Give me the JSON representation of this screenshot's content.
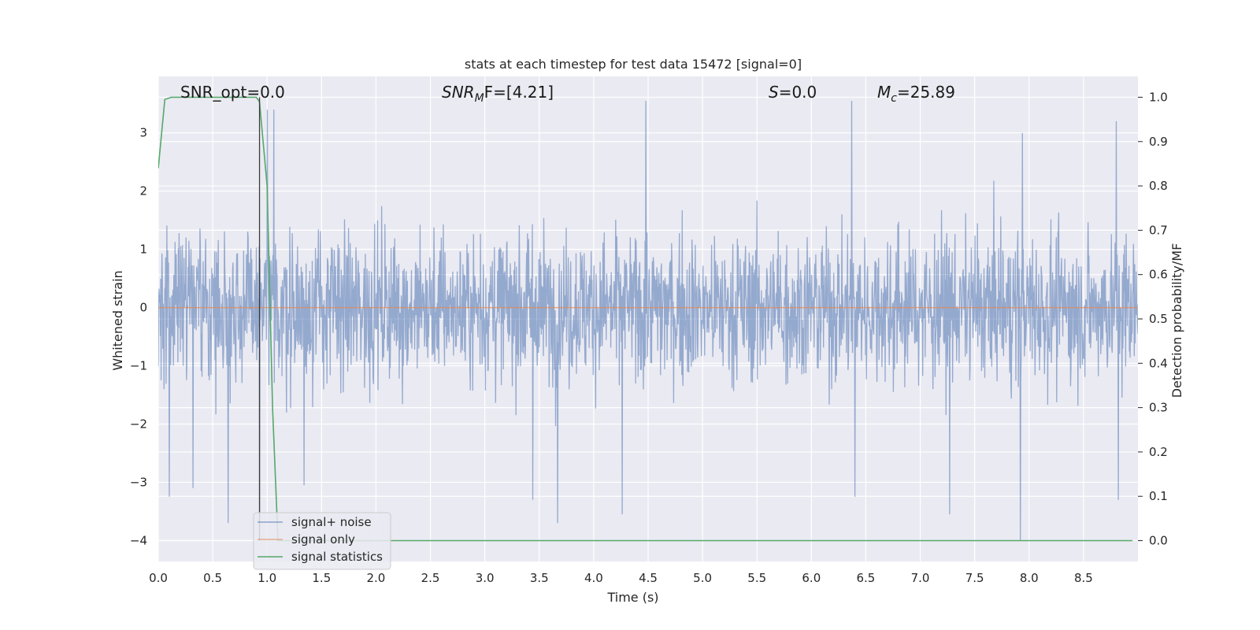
{
  "chart_data": {
    "type": "line",
    "title": "stats at each timestep for test data 15472 [signal=0]",
    "xlabel": "Time (s)",
    "ylabel_left": "Whitened strain",
    "ylabel_right": "Detection probability/MF",
    "xlim": [
      0.0,
      9.0
    ],
    "ylim_left": [
      -4.36,
      3.97
    ],
    "ylim_right": [
      -0.047,
      1.047
    ],
    "x_ticks": [
      "0.0",
      "0.5",
      "1.0",
      "1.5",
      "2.0",
      "2.5",
      "3.0",
      "3.5",
      "4.0",
      "4.5",
      "5.0",
      "5.5",
      "6.0",
      "6.5",
      "7.0",
      "7.5",
      "8.0",
      "8.5"
    ],
    "y_left_ticks": [
      "3",
      "2",
      "1",
      "0",
      "−1",
      "−2",
      "−3",
      "−4"
    ],
    "y_right_ticks": [
      "1.0",
      "0.9",
      "0.8",
      "0.7",
      "0.6",
      "0.5",
      "0.4",
      "0.3",
      "0.2",
      "0.1",
      "0.0"
    ],
    "grid": true,
    "legend_placement": "lower-left",
    "colors": {
      "background": "#eaeaf2",
      "grid": "#ffffff",
      "noise": "#4c72b0",
      "signal": "#dd8452",
      "stats": "#55a868",
      "vline": "#3a3a3a"
    },
    "annotations": {
      "snr_opt": "SNR_opt=0.0",
      "snr_mf_symbol": "SNR",
      "snr_mf_sub": "M",
      "snr_mf_rest": "F=[4.21]",
      "s_symbol": "S",
      "s_rest": "=0.0",
      "mc_symbol": "M",
      "mc_sub": "c",
      "mc_rest": "=25.89"
    },
    "vertical_marker_x": 0.93,
    "series": [
      {
        "name": "signal+ noise",
        "axis": "left",
        "description_values": "dense whitened noise, roughly within -2 to 2.5 with spikes",
        "spikes": [
          {
            "x": 0.1,
            "y": -3.25
          },
          {
            "x": 0.32,
            "y": -3.1
          },
          {
            "x": 0.64,
            "y": -3.7
          },
          {
            "x": 0.93,
            "y": -3.8
          },
          {
            "x": 1.06,
            "y": 3.4
          },
          {
            "x": 1.34,
            "y": -3.05
          },
          {
            "x": 3.44,
            "y": -3.3
          },
          {
            "x": 3.67,
            "y": -3.7
          },
          {
            "x": 4.26,
            "y": -3.55
          },
          {
            "x": 4.48,
            "y": 3.55
          },
          {
            "x": 6.37,
            "y": 3.55
          },
          {
            "x": 6.4,
            "y": -3.25
          },
          {
            "x": 7.27,
            "y": -3.55
          },
          {
            "x": 7.92,
            "y": -4.0
          },
          {
            "x": 7.94,
            "y": 3.0
          },
          {
            "x": 8.8,
            "y": 3.2
          },
          {
            "x": 8.82,
            "y": -3.3
          },
          {
            "x": 1.0,
            "y": 3.4
          }
        ]
      },
      {
        "name": "signal only",
        "axis": "left",
        "x": [
          0.0,
          9.0
        ],
        "y": [
          0.0,
          0.0
        ]
      },
      {
        "name": "signal statistics",
        "axis": "right",
        "x": [
          0.0,
          0.06,
          0.12,
          0.2,
          0.3,
          0.5,
          0.7,
          0.9,
          0.93,
          1.0,
          1.05,
          1.1,
          1.15,
          1.3,
          2.0,
          3.0,
          4.0,
          5.0,
          6.0,
          7.0,
          8.0,
          8.95
        ],
        "y": [
          0.84,
          0.995,
          1.0,
          1.0,
          1.0,
          1.0,
          1.0,
          1.0,
          0.99,
          0.8,
          0.3,
          0.0,
          0.0,
          0.0,
          0.0,
          0.0,
          0.0,
          0.0,
          0.0,
          0.0,
          0.0,
          0.0
        ]
      }
    ]
  }
}
